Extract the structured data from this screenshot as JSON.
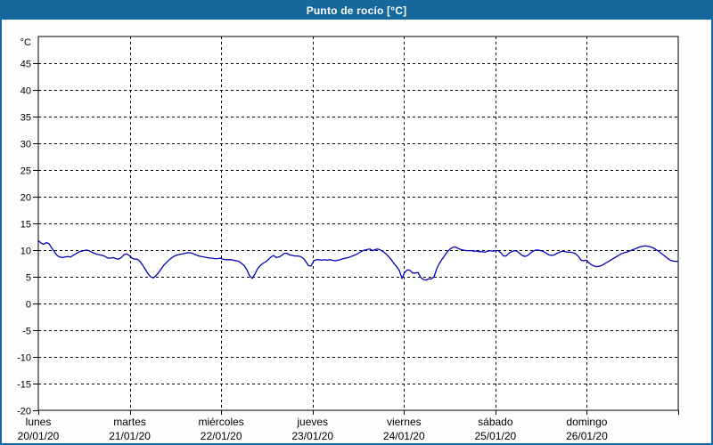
{
  "header": {
    "title": "Punto de rocío [°C]"
  },
  "colors": {
    "chrome_blue": "#17689c",
    "line_blue": "#0000b8",
    "grid_black": "#000000",
    "panel_bg": "#fdfdfd"
  },
  "chart_data": {
    "type": "line",
    "title": "Punto de rocío [°C]",
    "ylabel": "°C",
    "ylim": [
      -20,
      50
    ],
    "yticks": [
      -20,
      -15,
      -10,
      -5,
      0,
      5,
      10,
      15,
      20,
      25,
      30,
      35,
      40,
      45
    ],
    "grid": "dashed",
    "legend": "none",
    "x_categories_days": [
      {
        "name": "lunes",
        "date": "20/01/20"
      },
      {
        "name": "martes",
        "date": "21/01/20"
      },
      {
        "name": "miércoles",
        "date": "22/01/20"
      },
      {
        "name": "jueves",
        "date": "23/01/20"
      },
      {
        "name": "viernes",
        "date": "24/01/20"
      },
      {
        "name": "sábado",
        "date": "25/01/20"
      },
      {
        "name": "domingo",
        "date": "26/01/20"
      }
    ],
    "series": [
      {
        "name": "Punto de rocío",
        "unit": "°C",
        "color": "#0000b8",
        "x_start_day": 0,
        "x_step_day": 0.029249,
        "values": [
          11.8,
          11.3,
          11.1,
          11.4,
          11.2,
          10.4,
          9.7,
          9.0,
          8.7,
          8.6,
          8.7,
          8.8,
          8.7,
          9.0,
          9.3,
          9.6,
          9.8,
          9.9,
          10.0,
          9.9,
          9.6,
          9.4,
          9.2,
          9.1,
          9.0,
          8.8,
          8.5,
          8.5,
          8.6,
          8.4,
          8.3,
          8.6,
          9.1,
          9.3,
          9.0,
          8.5,
          8.3,
          8.3,
          7.9,
          7.2,
          6.4,
          5.6,
          5.0,
          4.8,
          5.2,
          5.8,
          6.5,
          7.2,
          7.7,
          8.2,
          8.6,
          8.9,
          9.1,
          9.2,
          9.3,
          9.4,
          9.5,
          9.5,
          9.3,
          9.1,
          8.9,
          8.8,
          8.7,
          8.6,
          8.5,
          8.5,
          8.4,
          8.4,
          8.5,
          8.3,
          8.2,
          8.2,
          8.2,
          8.1,
          8.0,
          7.9,
          7.5,
          7.1,
          6.3,
          5.2,
          4.7,
          5.5,
          6.5,
          7.1,
          7.5,
          7.8,
          8.2,
          8.7,
          9.0,
          8.6,
          8.7,
          9.0,
          9.4,
          9.4,
          9.1,
          9.0,
          8.9,
          8.9,
          8.8,
          8.5,
          7.9,
          7.1,
          7.0,
          8.0,
          8.2,
          8.2,
          8.1,
          8.2,
          8.1,
          8.2,
          8.1,
          8.0,
          8.1,
          8.2,
          8.4,
          8.5,
          8.6,
          8.8,
          9.0,
          9.2,
          9.5,
          9.8,
          10.0,
          10.1,
          10.2,
          9.9,
          10.1,
          10.2,
          10.0,
          9.7,
          9.3,
          8.8,
          8.2,
          7.5,
          6.9,
          6.2,
          4.7,
          5.8,
          6.3,
          6.2,
          5.7,
          5.7,
          5.8,
          4.9,
          4.5,
          4.4,
          4.6,
          4.6,
          5.0,
          6.5,
          7.5,
          8.3,
          9.0,
          9.7,
          10.2,
          10.5,
          10.6,
          10.3,
          10.1,
          10.0,
          9.9,
          9.9,
          9.9,
          9.8,
          9.8,
          9.7,
          9.7,
          9.6,
          9.8,
          9.9,
          9.8,
          9.9,
          9.9,
          9.5,
          8.9,
          8.9,
          9.4,
          9.7,
          9.9,
          9.8,
          9.4,
          9.0,
          8.8,
          9.0,
          9.4,
          9.8,
          10.0,
          10.0,
          9.9,
          9.7,
          9.4,
          9.1,
          9.0,
          9.1,
          9.4,
          9.6,
          9.8,
          9.7,
          9.6,
          9.6,
          9.5,
          9.3,
          8.8,
          8.1,
          8.0,
          8.1,
          7.6,
          7.2,
          7.0,
          6.9,
          7.0,
          7.2,
          7.5,
          7.8,
          8.1,
          8.4,
          8.7,
          9.0,
          9.3,
          9.5,
          9.6,
          9.8,
          10.0,
          10.2,
          10.4,
          10.6,
          10.7,
          10.8,
          10.7,
          10.6,
          10.4,
          10.1,
          9.8,
          9.4,
          9.0,
          8.6,
          8.2,
          8.0,
          7.9,
          7.9
        ]
      }
    ]
  }
}
